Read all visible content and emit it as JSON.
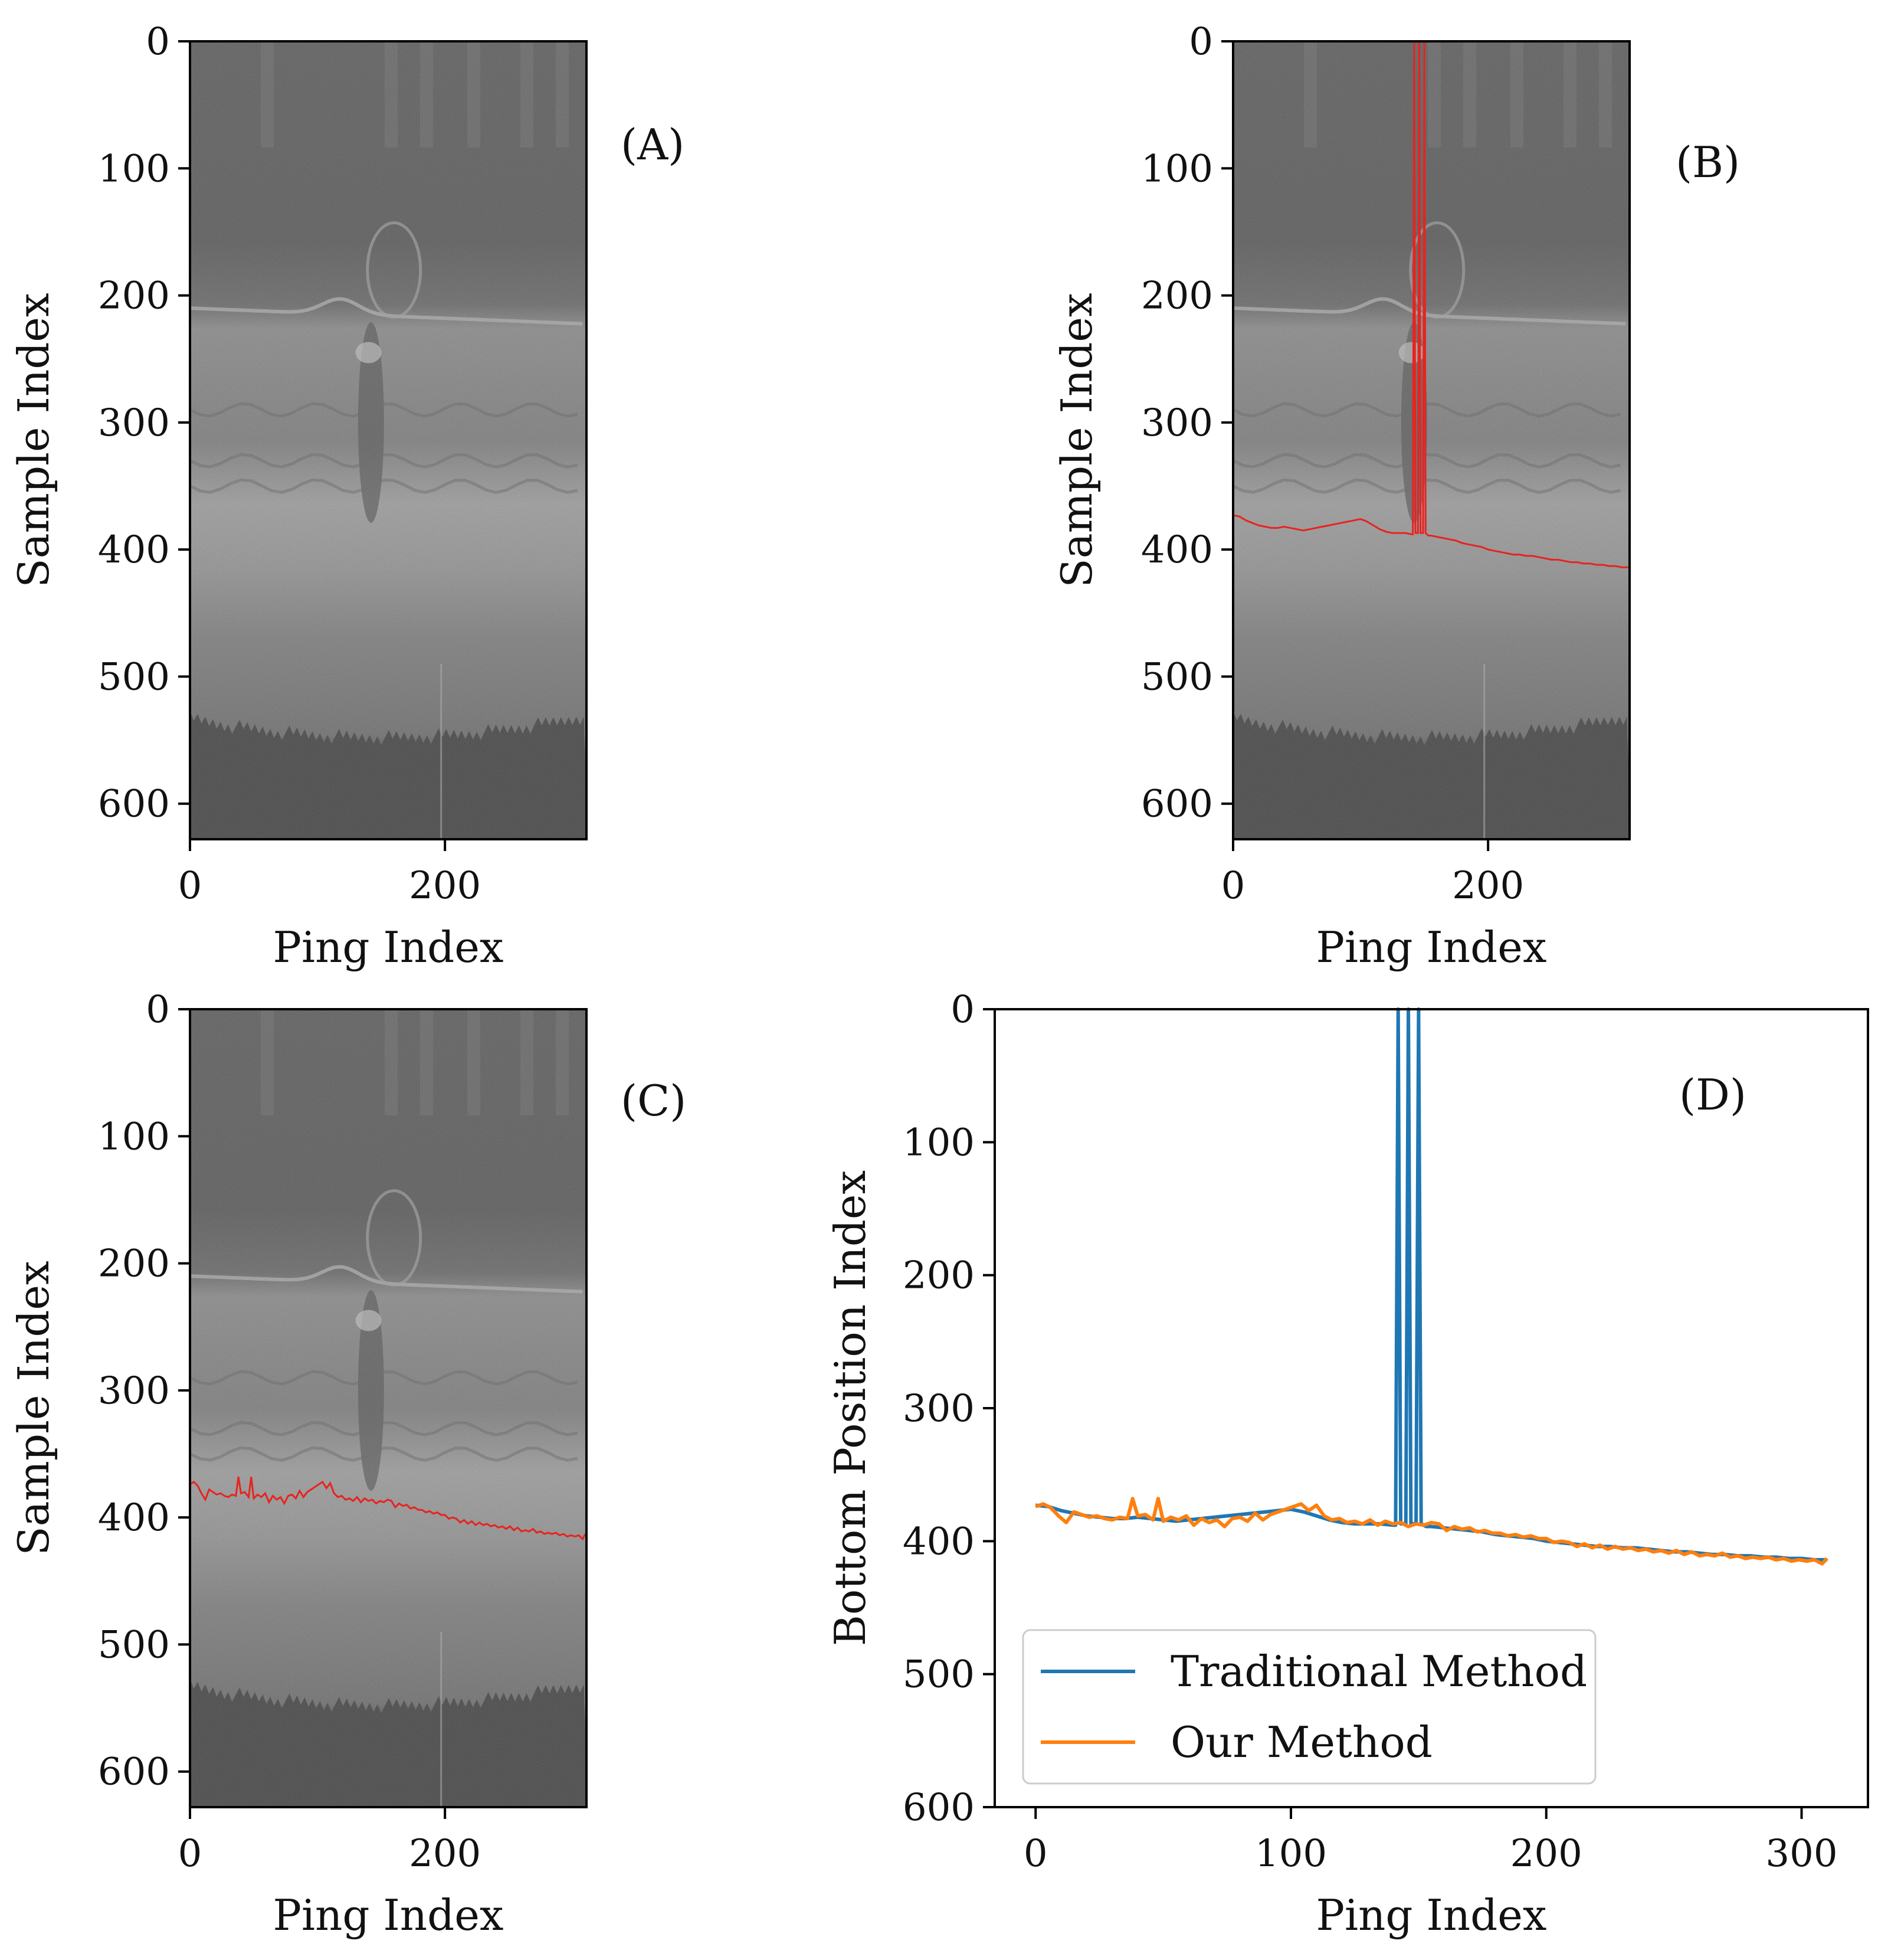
{
  "chart_data": [
    {
      "panel": "A",
      "type": "heatmap",
      "panel_label": "(A)",
      "xlabel": "Ping Index",
      "ylabel": "Sample Index",
      "xticks": [
        0,
        200
      ],
      "yticks": [
        0,
        100,
        200,
        300,
        400,
        500,
        600
      ],
      "xlim": [
        0,
        311
      ],
      "ylim": [
        628,
        0
      ],
      "overlay": "none"
    },
    {
      "panel": "B",
      "type": "heatmap",
      "panel_label": "(B)",
      "xlabel": "Ping Index",
      "ylabel": "Sample Index",
      "xticks": [
        0,
        200
      ],
      "yticks": [
        0,
        100,
        200,
        300,
        400,
        500,
        600
      ],
      "xlim": [
        0,
        311
      ],
      "ylim": [
        628,
        0
      ],
      "overlay": "traditional",
      "overlay_color": "#e8231f"
    },
    {
      "panel": "C",
      "type": "heatmap",
      "panel_label": "(C)",
      "xlabel": "Ping Index",
      "ylabel": "Sample Index",
      "xticks": [
        0,
        200
      ],
      "yticks": [
        0,
        100,
        200,
        300,
        400,
        500,
        600
      ],
      "xlim": [
        0,
        311
      ],
      "ylim": [
        628,
        0
      ],
      "overlay": "ours",
      "overlay_color": "#e8231f"
    },
    {
      "panel": "D",
      "type": "line",
      "panel_label": "(D)",
      "xlabel": "Ping Index",
      "ylabel": "Bottom Position Index",
      "xticks": [
        0,
        100,
        200,
        300
      ],
      "yticks": [
        0,
        100,
        200,
        300,
        400,
        500,
        600
      ],
      "xlim": [
        -16,
        326
      ],
      "ylim": [
        600,
        0
      ],
      "legend_position": "lower-left",
      "series": [
        {
          "name": "Traditional Method",
          "color": "#1f77b4",
          "x": [
            0,
            5,
            10,
            15,
            20,
            25,
            30,
            35,
            40,
            45,
            50,
            55,
            60,
            65,
            70,
            75,
            80,
            85,
            90,
            95,
            100,
            105,
            110,
            115,
            120,
            125,
            130,
            135,
            140,
            141,
            142,
            143,
            144,
            145,
            146,
            147,
            148,
            149,
            150,
            151,
            152,
            153,
            155,
            160,
            165,
            170,
            175,
            180,
            185,
            190,
            195,
            200,
            205,
            210,
            215,
            220,
            225,
            230,
            235,
            240,
            245,
            250,
            255,
            260,
            265,
            270,
            275,
            280,
            285,
            290,
            295,
            300,
            305,
            310
          ],
          "y": [
            373,
            374,
            377,
            379,
            381,
            382,
            383,
            383,
            382,
            383,
            384,
            385,
            384,
            383,
            382,
            381,
            380,
            379,
            378,
            377,
            376,
            378,
            381,
            384,
            386,
            387,
            387,
            387,
            388,
            388,
            0,
            387,
            387,
            387,
            0,
            387,
            387,
            387,
            0,
            387,
            388,
            389,
            389,
            390,
            391,
            392,
            393,
            395,
            396,
            397,
            398,
            400,
            401,
            402,
            403,
            404,
            404,
            405,
            405,
            406,
            407,
            408,
            408,
            409,
            410,
            410,
            411,
            411,
            412,
            412,
            413,
            413,
            414,
            414
          ]
        },
        {
          "name": "Our Method",
          "color": "#ff7f0e",
          "x": [
            0,
            3,
            6,
            9,
            12,
            15,
            18,
            21,
            24,
            27,
            30,
            33,
            36,
            38,
            40,
            43,
            46,
            48,
            50,
            53,
            56,
            59,
            62,
            65,
            68,
            71,
            74,
            77,
            80,
            83,
            86,
            89,
            92,
            95,
            98,
            101,
            104,
            107,
            110,
            113,
            116,
            119,
            122,
            125,
            128,
            131,
            134,
            137,
            140,
            143,
            146,
            149,
            152,
            155,
            158,
            161,
            164,
            167,
            170,
            173,
            176,
            179,
            182,
            185,
            188,
            191,
            194,
            197,
            200,
            203,
            206,
            209,
            212,
            215,
            218,
            221,
            224,
            227,
            230,
            233,
            236,
            239,
            242,
            245,
            248,
            251,
            254,
            257,
            260,
            263,
            266,
            269,
            272,
            275,
            278,
            281,
            284,
            287,
            290,
            293,
            296,
            299,
            302,
            305,
            308,
            310
          ],
          "y": [
            374,
            372,
            375,
            381,
            386,
            378,
            380,
            382,
            381,
            383,
            384,
            382,
            383,
            368,
            381,
            380,
            384,
            368,
            385,
            382,
            384,
            381,
            388,
            383,
            386,
            384,
            389,
            383,
            382,
            385,
            379,
            384,
            380,
            378,
            376,
            374,
            372,
            377,
            373,
            381,
            384,
            383,
            386,
            385,
            387,
            384,
            388,
            385,
            387,
            386,
            389,
            387,
            388,
            386,
            387,
            392,
            389,
            391,
            390,
            393,
            392,
            394,
            394,
            396,
            395,
            397,
            396,
            398,
            398,
            401,
            400,
            401,
            404,
            402,
            405,
            403,
            406,
            404,
            406,
            405,
            407,
            406,
            408,
            407,
            409,
            407,
            410,
            408,
            411,
            410,
            411,
            409,
            412,
            411,
            413,
            412,
            413,
            412,
            414,
            413,
            415,
            414,
            415,
            414,
            417,
            413
          ]
        }
      ]
    }
  ]
}
